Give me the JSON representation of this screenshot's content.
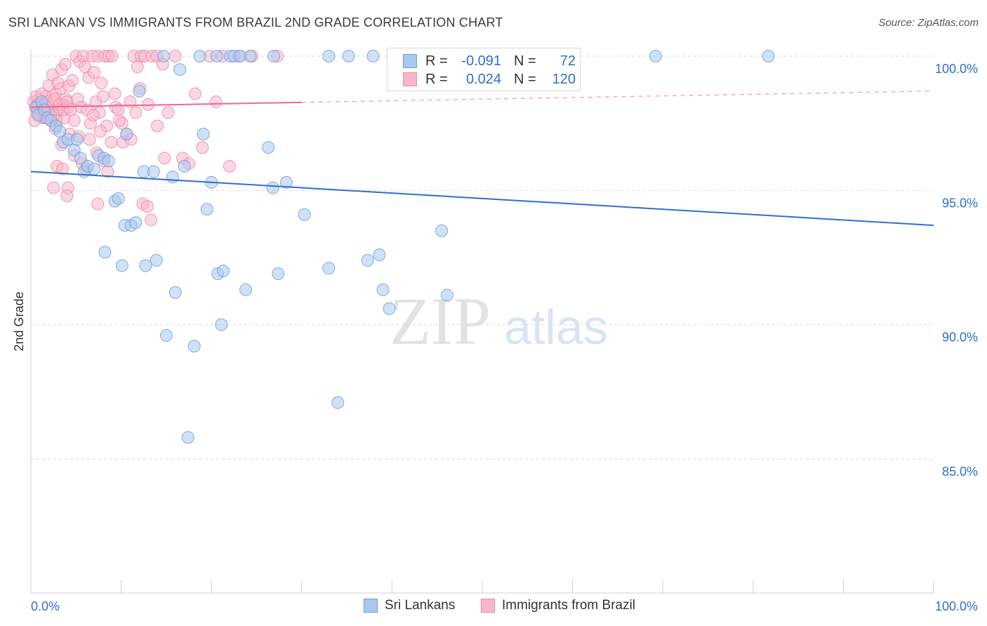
{
  "header": {
    "title": "SRI LANKAN VS IMMIGRANTS FROM BRAZIL 2ND GRADE CORRELATION CHART",
    "source": "Source: ZipAtlas.com"
  },
  "watermark": {
    "zip": "ZIP",
    "atlas": "atlas"
  },
  "colors": {
    "blue_fill": "#a9c8ee",
    "blue_stroke": "#6d9fdc",
    "blue_line": "#2f6fc9",
    "pink_fill": "#f6b7cb",
    "pink_stroke": "#ee88a8",
    "pink_line": "#e8698f",
    "axis_text": "#2f6fc9",
    "grid": "#d9d9d9"
  },
  "legend": {
    "series": [
      {
        "r_label": "R =",
        "r_value": "-0.091",
        "n_label": "N =",
        "n_value": "72"
      },
      {
        "r_label": "R =",
        "r_value": "0.024",
        "n_label": "N =",
        "n_value": "120"
      }
    ]
  },
  "chart_data": {
    "type": "scatter",
    "title": "SRI LANKAN VS IMMIGRANTS FROM BRAZIL 2ND GRADE CORRELATION CHART",
    "xlabel": "",
    "ylabel": "2nd Grade",
    "xlim": [
      0,
      100
    ],
    "ylim": [
      80.5,
      100.7
    ],
    "x_tick_labels": [
      {
        "value": 0,
        "label": "0.0%"
      },
      {
        "value": 100,
        "label": "100.0%"
      }
    ],
    "y_ticks": [
      {
        "value": 100,
        "label": "100.0%"
      },
      {
        "value": 95,
        "label": "95.0%"
      },
      {
        "value": 90,
        "label": "90.0%"
      },
      {
        "value": 85,
        "label": "85.0%"
      }
    ],
    "legend_position": "top-center",
    "series": [
      {
        "name": "Sri Lankans",
        "r": -0.091,
        "n": 72,
        "trend": {
          "x": [
            0,
            100
          ],
          "y": [
            95.7,
            93.7
          ],
          "dashed_from": null
        },
        "points": [
          [
            0.6,
            98.1
          ],
          [
            0.8,
            97.8
          ],
          [
            1.2,
            98.3
          ],
          [
            1.5,
            98.0
          ],
          [
            1.8,
            97.7
          ],
          [
            2.2,
            97.6
          ],
          [
            2.8,
            97.4
          ],
          [
            3.2,
            97.2
          ],
          [
            3.6,
            96.8
          ],
          [
            4.1,
            96.9
          ],
          [
            4.8,
            96.5
          ],
          [
            5.1,
            96.9
          ],
          [
            5.5,
            96.2
          ],
          [
            5.9,
            95.7
          ],
          [
            6.3,
            95.9
          ],
          [
            7.0,
            95.8
          ],
          [
            7.5,
            96.3
          ],
          [
            8.1,
            96.2
          ],
          [
            8.6,
            96.1
          ],
          [
            9.3,
            94.6
          ],
          [
            9.7,
            94.7
          ],
          [
            10.4,
            93.7
          ],
          [
            11.1,
            93.7
          ],
          [
            11.6,
            93.8
          ],
          [
            8.2,
            92.7
          ],
          [
            10.1,
            92.2
          ],
          [
            12.7,
            92.2
          ],
          [
            13.9,
            92.4
          ],
          [
            12.5,
            95.7
          ],
          [
            13.6,
            95.7
          ],
          [
            15.7,
            95.5
          ],
          [
            17.0,
            95.9
          ],
          [
            10.6,
            97.1
          ],
          [
            12.0,
            98.7
          ],
          [
            14.7,
            100.0
          ],
          [
            16.5,
            99.5
          ],
          [
            18.7,
            100.0
          ],
          [
            20.6,
            100.0
          ],
          [
            22.1,
            100.0
          ],
          [
            22.5,
            100.0
          ],
          [
            23.2,
            100.0
          ],
          [
            24.3,
            100.0
          ],
          [
            26.9,
            100.0
          ],
          [
            33.0,
            100.0
          ],
          [
            35.2,
            100.0
          ],
          [
            37.9,
            100.0
          ],
          [
            69.2,
            100.0
          ],
          [
            81.7,
            100.0
          ],
          [
            19.1,
            97.1
          ],
          [
            19.5,
            94.3
          ],
          [
            20.0,
            95.3
          ],
          [
            26.3,
            96.6
          ],
          [
            26.8,
            95.1
          ],
          [
            28.3,
            95.3
          ],
          [
            20.7,
            91.9
          ],
          [
            21.3,
            92.0
          ],
          [
            23.8,
            91.3
          ],
          [
            27.4,
            91.9
          ],
          [
            30.3,
            94.1
          ],
          [
            33.0,
            92.1
          ],
          [
            37.3,
            92.4
          ],
          [
            38.6,
            92.6
          ],
          [
            39.0,
            91.3
          ],
          [
            39.7,
            90.6
          ],
          [
            45.5,
            93.5
          ],
          [
            46.1,
            91.1
          ],
          [
            16.0,
            91.2
          ],
          [
            15.0,
            89.6
          ],
          [
            21.1,
            90.0
          ],
          [
            18.1,
            89.2
          ],
          [
            34.0,
            87.1
          ],
          [
            17.4,
            85.8
          ]
        ]
      },
      {
        "name": "Immigrants from Brazil",
        "r": 0.024,
        "n": 120,
        "trend": {
          "x": [
            0,
            100
          ],
          "y": [
            98.1,
            98.7
          ],
          "dashed_from": 30
        },
        "points": [
          [
            0.3,
            98.3
          ],
          [
            0.5,
            98.1
          ],
          [
            0.7,
            97.9
          ],
          [
            0.9,
            98.4
          ],
          [
            1.1,
            98.0
          ],
          [
            1.3,
            97.7
          ],
          [
            1.5,
            98.2
          ],
          [
            1.7,
            98.5
          ],
          [
            1.9,
            97.8
          ],
          [
            2.1,
            98.1
          ],
          [
            2.3,
            97.6
          ],
          [
            2.5,
            98.3
          ],
          [
            2.7,
            98.6
          ],
          [
            2.9,
            97.9
          ],
          [
            3.1,
            98.0
          ],
          [
            3.3,
            98.8
          ],
          [
            3.5,
            98.2
          ],
          [
            3.7,
            97.7
          ],
          [
            3.9,
            98.4
          ],
          [
            4.1,
            98.1
          ],
          [
            0.4,
            97.6
          ],
          [
            0.6,
            98.5
          ],
          [
            0.8,
            98.2
          ],
          [
            1.0,
            97.8
          ],
          [
            1.2,
            98.6
          ],
          [
            1.4,
            98.0
          ],
          [
            1.6,
            97.7
          ],
          [
            1.8,
            98.3
          ],
          [
            2.0,
            98.9
          ],
          [
            2.2,
            97.8
          ],
          [
            2.4,
            99.3
          ],
          [
            2.6,
            98.4
          ],
          [
            2.8,
            97.6
          ],
          [
            3.0,
            99.0
          ],
          [
            3.2,
            98.2
          ],
          [
            3.4,
            99.5
          ],
          [
            3.6,
            98.0
          ],
          [
            3.8,
            99.7
          ],
          [
            4.0,
            98.3
          ],
          [
            4.2,
            98.9
          ],
          [
            4.4,
            98.0
          ],
          [
            4.6,
            99.1
          ],
          [
            4.8,
            97.6
          ],
          [
            5.0,
            100.0
          ],
          [
            5.2,
            98.4
          ],
          [
            5.4,
            99.8
          ],
          [
            5.6,
            98.1
          ],
          [
            5.8,
            100.0
          ],
          [
            6.0,
            99.6
          ],
          [
            6.2,
            98.0
          ],
          [
            6.4,
            99.2
          ],
          [
            6.6,
            97.5
          ],
          [
            6.8,
            100.0
          ],
          [
            7.0,
            99.4
          ],
          [
            7.2,
            98.3
          ],
          [
            7.4,
            100.0
          ],
          [
            7.6,
            97.9
          ],
          [
            7.8,
            99.0
          ],
          [
            8.0,
            98.5
          ],
          [
            8.2,
            100.0
          ],
          [
            8.4,
            97.4
          ],
          [
            8.6,
            100.0
          ],
          [
            9.0,
            100.0
          ],
          [
            9.4,
            98.1
          ],
          [
            9.8,
            97.6
          ],
          [
            10.2,
            96.8
          ],
          [
            10.6,
            97.1
          ],
          [
            11.0,
            98.3
          ],
          [
            11.4,
            100.0
          ],
          [
            11.8,
            99.6
          ],
          [
            12.2,
            100.0
          ],
          [
            12.6,
            100.0
          ],
          [
            13.0,
            98.2
          ],
          [
            13.4,
            100.0
          ],
          [
            14.0,
            100.0
          ],
          [
            14.6,
            99.7
          ],
          [
            15.2,
            97.9
          ],
          [
            16.0,
            100.0
          ],
          [
            16.8,
            96.2
          ],
          [
            17.5,
            96.0
          ],
          [
            18.2,
            98.6
          ],
          [
            19.0,
            96.6
          ],
          [
            19.8,
            100.0
          ],
          [
            20.5,
            98.3
          ],
          [
            21.2,
            100.0
          ],
          [
            22.0,
            95.9
          ],
          [
            23.0,
            100.0
          ],
          [
            24.5,
            100.0
          ],
          [
            27.3,
            100.0
          ],
          [
            2.5,
            95.1
          ],
          [
            2.9,
            95.9
          ],
          [
            3.4,
            96.7
          ],
          [
            4.3,
            97.1
          ],
          [
            4.8,
            96.3
          ],
          [
            5.3,
            97.0
          ],
          [
            5.7,
            96.0
          ],
          [
            6.1,
            95.8
          ],
          [
            6.5,
            96.9
          ],
          [
            6.9,
            97.8
          ],
          [
            7.3,
            96.4
          ],
          [
            7.7,
            97.2
          ],
          [
            8.1,
            96.1
          ],
          [
            8.5,
            95.7
          ],
          [
            8.9,
            96.8
          ],
          [
            9.3,
            98.6
          ],
          [
            9.7,
            98.0
          ],
          [
            10.1,
            97.5
          ],
          [
            11.1,
            96.9
          ],
          [
            11.6,
            97.9
          ],
          [
            12.1,
            98.8
          ],
          [
            12.4,
            94.5
          ],
          [
            12.9,
            94.4
          ],
          [
            13.3,
            93.9
          ],
          [
            14.0,
            97.4
          ],
          [
            14.8,
            96.2
          ],
          [
            7.4,
            94.5
          ],
          [
            4.1,
            95.1
          ],
          [
            4.0,
            94.8
          ],
          [
            3.5,
            95.8
          ],
          [
            2.7,
            97.3
          ]
        ]
      }
    ]
  }
}
